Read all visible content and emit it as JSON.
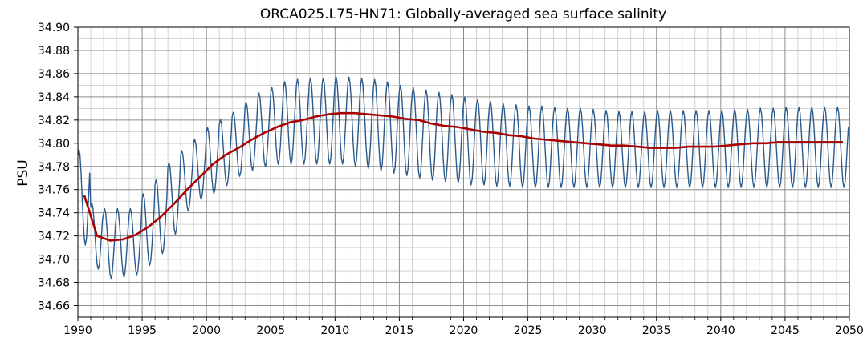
{
  "chart_data": {
    "type": "line",
    "title": "ORCA025.L75-HN71: Globally-averaged sea surface salinity",
    "xlabel": "",
    "ylabel": "PSU",
    "xlim": [
      1990,
      2050
    ],
    "ylim": [
      34.65,
      34.9
    ],
    "grid": true,
    "x_major_ticks": [
      1990,
      1995,
      2000,
      2005,
      2010,
      2015,
      2020,
      2025,
      2030,
      2035,
      2040,
      2045,
      2050
    ],
    "x_tick_labels": [
      "1990",
      "1995",
      "2000",
      "2005",
      "2010",
      "2015",
      "2020",
      "2025",
      "2030",
      "2035",
      "2040",
      "2045",
      "2050"
    ],
    "x_minor_step": 1,
    "y_tick_values": [
      34.66,
      34.68,
      34.7,
      34.72,
      34.74,
      34.76,
      34.78,
      34.8,
      34.82,
      34.84,
      34.86,
      34.88,
      34.9
    ],
    "y_tick_labels": [
      "34.66",
      "34.68",
      "34.70",
      "34.72",
      "34.74",
      "34.76",
      "34.78",
      "34.80",
      "34.82",
      "34.84",
      "34.86",
      "34.88",
      "34.90"
    ],
    "colors": {
      "monthly": "#2b5b8c",
      "annual": "#aa0000",
      "grid_major": "#8c8c8c",
      "grid_minor": "#c8c8c8"
    },
    "series": [
      {
        "style": "monthly",
        "x_start": 1990.0,
        "x_step": 0.0833333,
        "annual_min": [
          34.71,
          34.69,
          34.682,
          34.683,
          34.685,
          34.693,
          34.703,
          34.72,
          34.74,
          34.75,
          34.755,
          34.762,
          34.77,
          34.775,
          34.778,
          34.78,
          34.78,
          34.78,
          34.78,
          34.78,
          34.78,
          34.778,
          34.776,
          34.774,
          34.772,
          34.77,
          34.768,
          34.766,
          34.765,
          34.764,
          34.762,
          34.762,
          34.761,
          34.761,
          34.76,
          34.76,
          34.76,
          34.76,
          34.76,
          34.76,
          34.76,
          34.76,
          34.76,
          34.76,
          34.76,
          34.76,
          34.76,
          34.76,
          34.76,
          34.76,
          34.76,
          34.76,
          34.76,
          34.76,
          34.76,
          34.76,
          34.76,
          34.76,
          34.76,
          34.76
        ],
        "annual_max": [
          34.797,
          34.75,
          34.745,
          34.745,
          34.745,
          34.758,
          34.77,
          34.785,
          34.795,
          34.805,
          34.815,
          34.822,
          34.828,
          34.837,
          34.845,
          34.85,
          34.855,
          34.857,
          34.858,
          34.858,
          34.859,
          34.859,
          34.858,
          34.857,
          34.855,
          34.852,
          34.85,
          34.848,
          34.846,
          34.844,
          34.842,
          34.84,
          34.838,
          34.836,
          34.835,
          34.834,
          34.834,
          34.833,
          34.832,
          34.832,
          34.831,
          34.83,
          34.829,
          34.829,
          34.829,
          34.83,
          34.83,
          34.83,
          34.83,
          34.83,
          34.83,
          34.831,
          34.831,
          34.832,
          34.832,
          34.833,
          34.833,
          34.833,
          34.833,
          34.833
        ]
      },
      {
        "style": "annual",
        "x": [
          1990.5,
          1991.5,
          1992.5,
          1993.5,
          1994.5,
          1995.5,
          1996.5,
          1997.5,
          1998.5,
          1999.5,
          2000.5,
          2001.5,
          2002.5,
          2003.5,
          2004.5,
          2005.5,
          2006.5,
          2007.5,
          2008.5,
          2009.5,
          2010.5,
          2011.5,
          2012.5,
          2013.5,
          2014.5,
          2015.5,
          2016.5,
          2017.5,
          2018.5,
          2019.5,
          2020.5,
          2021.5,
          2022.5,
          2023.5,
          2024.5,
          2025.5,
          2026.5,
          2027.5,
          2028.5,
          2029.5,
          2030.5,
          2031.5,
          2032.5,
          2033.5,
          2034.5,
          2035.5,
          2036.5,
          2037.5,
          2038.5,
          2039.5,
          2040.5,
          2041.5,
          2042.5,
          2043.5,
          2044.5,
          2045.5,
          2046.5,
          2047.5,
          2048.5,
          2049.5
        ],
        "y": [
          34.755,
          34.72,
          34.716,
          34.717,
          34.721,
          34.728,
          34.737,
          34.748,
          34.76,
          34.771,
          34.782,
          34.79,
          34.796,
          34.803,
          34.809,
          34.814,
          34.818,
          34.82,
          34.823,
          34.825,
          34.826,
          34.826,
          34.825,
          34.824,
          34.823,
          34.821,
          34.82,
          34.817,
          34.815,
          34.814,
          34.812,
          34.81,
          34.809,
          34.807,
          34.806,
          34.804,
          34.803,
          34.802,
          34.801,
          34.8,
          34.799,
          34.798,
          34.798,
          34.797,
          34.796,
          34.796,
          34.796,
          34.797,
          34.797,
          34.797,
          34.798,
          34.799,
          34.8,
          34.8,
          34.801,
          34.801,
          34.801,
          34.801,
          34.801,
          34.801
        ]
      }
    ]
  }
}
